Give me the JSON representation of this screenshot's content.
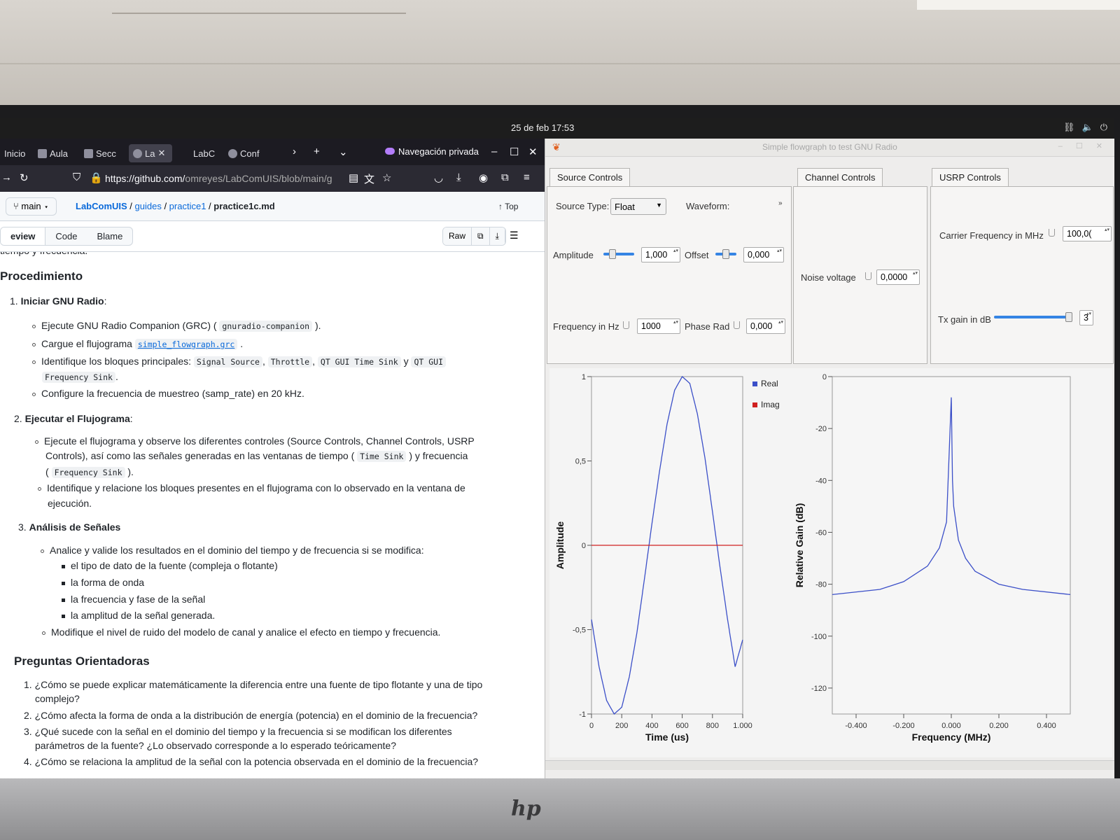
{
  "os": {
    "clock": "25 de feb  17:53"
  },
  "browser": {
    "tabs": [
      {
        "label": "Inicio"
      },
      {
        "label": "Aula"
      },
      {
        "label": "Secc"
      },
      {
        "label": "La"
      },
      {
        "label": "LabC"
      },
      {
        "label": "Conf"
      }
    ],
    "private_label": "Navegación privada",
    "url_main": "https://github.com/",
    "url_rest": "omreyes/LabComUIS/blob/main/g"
  },
  "github": {
    "branch": "main",
    "crumbs": {
      "repo": "LabComUIS",
      "dir1": "guides",
      "dir2": "practice1",
      "file": "practice1c.md"
    },
    "top_label": "Top",
    "tabs": {
      "preview": "eview",
      "code": "Code",
      "blame": "Blame"
    },
    "raw_label": "Raw"
  },
  "doc": {
    "cut_line": "tiempo y frecuencia.",
    "h_procedimiento": "Procedimiento",
    "s1_num": "1.",
    "s1_title": "Iniciar GNU Radio",
    "s1_b1_text": "Ejecute GNU Radio Companion (GRC) (",
    "s1_b1_code": "gnuradio-companion",
    "s1_b1_end": ").",
    "s1_b2_text": "Cargue el flujograma",
    "s1_b2_code": "simple_flowgraph.grc",
    "s1_b3_text": "Identifique los bloques principales:",
    "s1_b3_c1": "Signal Source",
    "s1_b3_c2": "Throttle",
    "s1_b3_c3": "QT GUI Time Sink",
    "s1_b3_y": "y",
    "s1_b3_c4": "QT GUI",
    "s1_b3_c5": "Frequency Sink",
    "s1_b4_text": "Configure la frecuencia de muestreo (samp_rate) en 20 kHz.",
    "s2_num": "2.",
    "s2_title": "Ejecutar el Flujograma",
    "s2_b1_l1": "Ejecute el flujograma y observe los diferentes controles (Source Controls, Channel Controls, USRP",
    "s2_b1_l2a": "Controls), así como las señales generadas en las ventanas de tiempo (",
    "s2_b1_code1": "Time Sink",
    "s2_b1_l2b": ") y frecuencia",
    "s2_b1_code2": "Frequency Sink",
    "s2_b1_l3b": ").",
    "s2_b2_l1": "Identifique y relacione los bloques presentes en el flujograma con lo observado en la ventana de",
    "s2_b2_l2": "ejecución.",
    "s3_num": "3.",
    "s3_title": "Análisis de Señales",
    "s3_b1": "Analice y valide los resultados en el dominio del tiempo y de frecuencia si se modifica:",
    "s3_sub1": "el tipo de dato de la fuente (compleja o flotante)",
    "s3_sub2": "la forma de onda",
    "s3_sub3": "la frecuencia y fase de la señal",
    "s3_sub4": "la amplitud de la señal generada.",
    "s3_b2": "Modifique el nivel de ruido del modelo de canal y analice el efecto en tiempo y frecuencia.",
    "h_preguntas": "Preguntas Orientadoras",
    "q1_l1": "1. ¿Cómo se puede explicar matemáticamente la diferencia entre una fuente de tipo flotante y una de tipo",
    "q1_l2": "complejo?",
    "q2": "2. ¿Cómo afecta la forma de onda a la distribución de energía (potencia) en el dominio de la frecuencia?",
    "q3_l1": "3. ¿Qué sucede con la señal en el dominio del tiempo y la frecuencia si se modifican los diferentes",
    "q3_l2": "parámetros de la fuente? ¿Lo observado corresponde a lo esperado teóricamente?",
    "q4": "4. ¿Cómo se relaciona la amplitud de la señal con la potencia observada en el dominio de la frecuencia?"
  },
  "gnuradio": {
    "title": "Simple flowgraph to test GNU Radio",
    "tabs": {
      "source": "Source Controls",
      "channel": "Channel Controls",
      "usrp": "USRP Controls"
    },
    "source": {
      "type_label": "Source Type:",
      "type_value": "Float",
      "waveform_label": "Waveform:",
      "amplitude_label": "Amplitude",
      "amplitude_value": "1,000",
      "offset_label": "Offset",
      "offset_value": "0,000",
      "freq_label": "Frequency in Hz",
      "freq_value": "1000",
      "phase_label": "Phase Rad",
      "phase_value": "0,000"
    },
    "channel": {
      "noise_label": "Noise voltage",
      "noise_value": "0,0000"
    },
    "usrp": {
      "carrier_label": "Carrier Frequency in MHz",
      "carrier_value": "100,0(",
      "txgain_label": "Tx gain in dB",
      "txgain_value": "3"
    }
  },
  "chart_data": [
    {
      "type": "line",
      "xlabel": "Time (us)",
      "ylabel": "Amplitude",
      "xlim": [
        0,
        1000
      ],
      "ylim": [
        -1,
        1
      ],
      "xticks": [
        "0",
        "200",
        "400",
        "600",
        "800",
        "1.000"
      ],
      "yticks": [
        "1",
        "0,5",
        "0",
        "-0,5",
        "-1"
      ],
      "series": [
        {
          "name": "Real",
          "color": "#3b4fc8",
          "x": [
            0,
            50,
            100,
            150,
            200,
            250,
            300,
            350,
            400,
            450,
            500,
            550,
            600,
            650,
            700,
            750,
            800,
            850,
            900,
            950,
            1000
          ],
          "y": [
            -0.44,
            -0.72,
            -0.92,
            -1.0,
            -0.96,
            -0.78,
            -0.52,
            -0.2,
            0.13,
            0.44,
            0.72,
            0.92,
            1.0,
            0.96,
            0.78,
            0.52,
            0.2,
            -0.13,
            -0.44,
            -0.72,
            -0.56
          ]
        },
        {
          "name": "Imag",
          "color": "#d02020",
          "x": [
            0,
            1000
          ],
          "y": [
            0,
            0
          ]
        }
      ]
    },
    {
      "type": "line",
      "xlabel": "Frequency (MHz)",
      "ylabel": "Relative Gain (dB)",
      "xlim": [
        -0.5,
        0.5
      ],
      "ylim": [
        -130,
        0
      ],
      "xticks": [
        "-0.400",
        "-0.200",
        "0.000",
        "0.200",
        "0.400"
      ],
      "yticks": [
        "0",
        "-20",
        "-40",
        "-60",
        "-80",
        "-100",
        "-120"
      ],
      "series": [
        {
          "color": "#3b4fc8",
          "x": [
            -0.5,
            -0.3,
            -0.2,
            -0.1,
            -0.05,
            -0.02,
            0.0,
            0.005,
            0.01,
            0.03,
            0.06,
            0.1,
            0.2,
            0.3,
            0.5
          ],
          "y": [
            -84,
            -82,
            -79,
            -73,
            -66,
            -56,
            -8,
            -40,
            -50,
            -63,
            -70,
            -75,
            -80,
            -82,
            -84
          ]
        }
      ]
    }
  ]
}
